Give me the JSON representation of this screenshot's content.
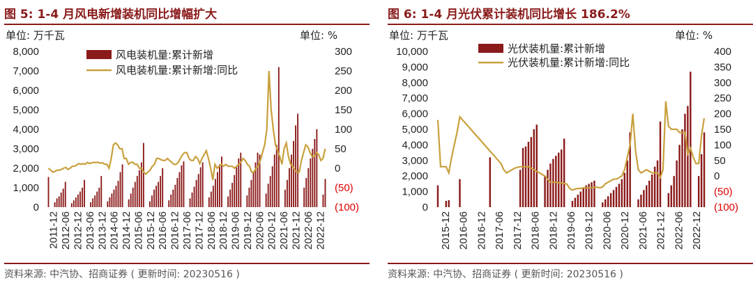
{
  "colors": {
    "bar": "#8b1a1a",
    "line": "#c8a03c",
    "title": "#8a1a1a",
    "negative_tick": "#e00000"
  },
  "left": {
    "title": "图 5:  1-4 月风电新增装机同比增幅扩大",
    "unit_left": "单位:  万千瓦",
    "unit_right": "单位:   %",
    "source": "资料来源:  中汽协、招商证券 ( 更新时间:  20230516 )"
  },
  "right": {
    "title": "图 6:  1-4 月光伏累计装机同比增长 186.2%",
    "unit_left": "单位:  万千瓦",
    "unit_right": "单位:   %",
    "source": "资料来源:  中汽协、招商证券 ( 更新时间:  20230516 )"
  },
  "chart_data": [
    {
      "type": "bar",
      "title": "1-4 月风电新增装机同比增幅扩大",
      "ylim": [
        0,
        8000
      ],
      "y2lim": [
        -100,
        300
      ],
      "yticks": [
        "0",
        "1,000",
        "2,000",
        "3,000",
        "4,000",
        "5,000",
        "6,000",
        "7,000",
        "8,000"
      ],
      "y2ticks": [
        "(100)",
        "(50)",
        "0",
        "50",
        "100",
        "150",
        "200",
        "250",
        "300"
      ],
      "xticks": [
        "2011-12",
        "2012-06",
        "2012-12",
        "2013-06",
        "2013-12",
        "2014-06",
        "2014-12",
        "2015-06",
        "2015-12",
        "2016-06",
        "2016-12",
        "2017-06",
        "2017-12",
        "2018-06",
        "2018-12",
        "2019-06",
        "2019-12",
        "2020-06",
        "2020-12",
        "2021-06",
        "2021-12",
        "2022-06",
        "2022-12"
      ],
      "series": [
        {
          "name": "风电装机量:累计新增",
          "kind": "bar",
          "values": [
            1550,
            0,
            0,
            250,
            450,
            550,
            750,
            950,
            1300,
            0,
            0,
            200,
            350,
            500,
            650,
            800,
            1000,
            1400,
            0,
            0,
            250,
            450,
            600,
            800,
            1000,
            1600,
            0,
            0,
            300,
            500,
            700,
            900,
            1100,
            1350,
            1800,
            2200,
            0,
            0,
            400,
            700,
            1000,
            1300,
            1600,
            1900,
            2300,
            3300,
            0,
            0,
            300,
            600,
            900,
            1100,
            1300,
            1600,
            2000,
            0,
            0,
            350,
            650,
            900,
            1150,
            1500,
            1800,
            2150,
            2350,
            0,
            0,
            450,
            750,
            1050,
            1400,
            1700,
            2050,
            2300,
            0,
            0,
            500,
            800,
            1100,
            1450,
            1800,
            2200,
            2600,
            0,
            0,
            550,
            900,
            1250,
            1650,
            2050,
            2500,
            2800,
            0,
            0,
            600,
            1000,
            1400,
            1800,
            2300,
            2800,
            2700,
            0,
            0,
            700,
            1200,
            1600,
            2100,
            2700,
            3200,
            7200,
            0,
            0,
            900,
            1400,
            2000,
            2700,
            3400,
            4200,
            4800,
            0,
            0,
            1000,
            1500,
            2000,
            2500,
            3000,
            3500,
            4000,
            0,
            0,
            650,
            1450
          ]
        },
        {
          "name": "风电装机量:累计新增:同比",
          "kind": "line",
          "values": [
            0,
            -5,
            -10,
            -8,
            -5,
            -5,
            -3,
            0,
            2,
            -3,
            0,
            5,
            5,
            8,
            12,
            10,
            12,
            10,
            15,
            12,
            14,
            15,
            15,
            15,
            13,
            14,
            10,
            10,
            0,
            25,
            60,
            65,
            60,
            50,
            50,
            25,
            25,
            10,
            15,
            15,
            10,
            10,
            0,
            0,
            -10,
            -15,
            -10,
            -5,
            5,
            10,
            25,
            25,
            22,
            20,
            20,
            25,
            20,
            15,
            10,
            10,
            15,
            25,
            35,
            40,
            40,
            25,
            20,
            20,
            30,
            25,
            12,
            25,
            35,
            45,
            25,
            0,
            -30,
            10,
            0,
            5,
            10,
            5,
            10,
            5,
            5,
            5,
            0,
            5,
            10,
            15,
            25,
            20,
            10,
            5,
            -10,
            -10,
            0,
            5,
            20,
            40,
            60,
            100,
            250,
            150,
            100,
            60,
            45,
            30,
            10,
            50,
            65,
            30,
            10,
            5,
            -5,
            -10,
            -10,
            20,
            40,
            60,
            55,
            40,
            30,
            30,
            40,
            35,
            20,
            25,
            50
          ]
        }
      ]
    },
    {
      "type": "bar",
      "title": "1-4 月光伏累计装机同比增长 186.2%",
      "ylim": [
        0,
        10000
      ],
      "y2lim": [
        -100,
        400
      ],
      "yticks": [
        "0",
        "1,000",
        "2,000",
        "3,000",
        "4,000",
        "5,000",
        "6,000",
        "7,000",
        "8,000",
        "9,000",
        "10,000"
      ],
      "y2ticks": [
        "(100)",
        "(50)",
        "0",
        "50",
        "100",
        "150",
        "200",
        "250",
        "300",
        "350",
        "400"
      ],
      "xticks": [
        "2015-12",
        "2016-06",
        "2016-12",
        "2017-06",
        "2017-12",
        "2018-06",
        "2018-12",
        "2019-06",
        "2019-12",
        "2020-06",
        "2020-12",
        "2021-06",
        "2021-12",
        "2022-06",
        "2022-12"
      ],
      "series": [
        {
          "name": "光伏装机量:累计新增",
          "kind": "bar",
          "values": [
            1400,
            0,
            0,
            400,
            450,
            0,
            0,
            0,
            1800,
            0,
            0,
            0,
            0,
            0,
            0,
            0,
            0,
            0,
            0,
            3200,
            0,
            0,
            0,
            0,
            0,
            0,
            0,
            0,
            0,
            0,
            2400,
            3800,
            3900,
            4200,
            4500,
            5000,
            5300,
            0,
            0,
            2000,
            2400,
            2800,
            3100,
            3300,
            3500,
            3700,
            4400,
            0,
            0,
            400,
            600,
            800,
            1000,
            1200,
            1400,
            1500,
            1600,
            1700,
            0,
            0,
            300,
            500,
            700,
            900,
            1100,
            1300,
            1500,
            1800,
            2200,
            3000,
            4800,
            0,
            0,
            500,
            800,
            1100,
            1400,
            1700,
            2100,
            2600,
            3000,
            5500,
            0,
            0,
            900,
            1400,
            2000,
            3000,
            4000,
            5000,
            6000,
            6500,
            8700,
            0,
            0,
            2000,
            3400,
            4800
          ]
        },
        {
          "name": "光伏装机量:累计新增:同比",
          "kind": "line",
          "values": [
            180,
            30,
            30,
            30,
            10,
            60,
            100,
            140,
            190,
            180,
            170,
            160,
            150,
            140,
            130,
            120,
            110,
            100,
            90,
            80,
            70,
            60,
            50,
            40,
            20,
            10,
            15,
            20,
            25,
            28,
            30,
            30,
            30,
            30,
            25,
            20,
            15,
            10,
            5,
            0,
            -10,
            -20,
            -20,
            -20,
            -22,
            -22,
            -24,
            -26,
            -40,
            -45,
            -42,
            -40,
            -40,
            -38,
            -38,
            -38,
            -38,
            -36,
            -36,
            -38,
            -35,
            -25,
            -20,
            -15,
            -10,
            -10,
            -5,
            0,
            20,
            60,
            100,
            200,
            80,
            20,
            10,
            15,
            20,
            15,
            10,
            10,
            10,
            -5,
            20,
            240,
            160,
            150,
            150,
            150,
            140,
            140,
            140,
            70,
            90,
            60,
            40,
            40,
            130,
            186
          ]
        }
      ]
    }
  ]
}
